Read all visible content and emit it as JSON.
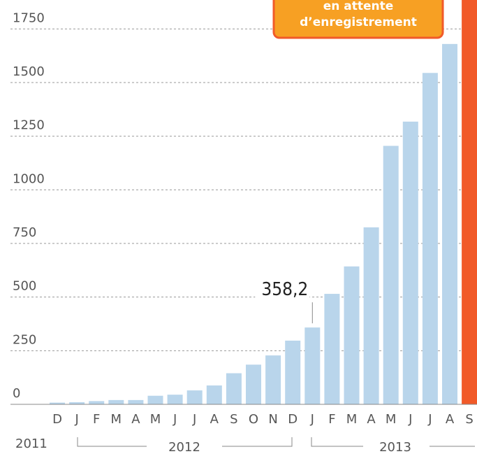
{
  "chart_data": {
    "type": "bar",
    "categories": [
      "D",
      "J",
      "F",
      "M",
      "A",
      "M",
      "J",
      "J",
      "A",
      "S",
      "O",
      "N",
      "D",
      "J",
      "F",
      "M",
      "A",
      "M",
      "J",
      "J",
      "A",
      "S"
    ],
    "values": [
      8,
      10,
      15,
      20,
      20,
      40,
      45,
      65,
      88,
      145,
      185,
      228,
      297,
      358.2,
      515,
      643,
      825,
      1205,
      1318,
      1545,
      1680,
      2000
    ],
    "value_labels": [
      null,
      null,
      null,
      null,
      null,
      null,
      null,
      null,
      null,
      null,
      null,
      null,
      null,
      "358,2",
      null,
      null,
      null,
      null,
      null,
      null,
      null,
      null
    ],
    "colors": [
      "#b9d5eb",
      "#b9d5eb",
      "#b9d5eb",
      "#b9d5eb",
      "#b9d5eb",
      "#b9d5eb",
      "#b9d5eb",
      "#b9d5eb",
      "#b9d5eb",
      "#b9d5eb",
      "#b9d5eb",
      "#b9d5eb",
      "#b9d5eb",
      "#b9d5eb",
      "#b9d5eb",
      "#b9d5eb",
      "#b9d5eb",
      "#b9d5eb",
      "#b9d5eb",
      "#b9d5eb",
      "#b9d5eb",
      "#f15a29"
    ],
    "years": [
      "2011",
      "2012",
      "2013"
    ],
    "annotation": [
      "en attente",
      "d’enregistrement"
    ],
    "ylim": [
      0,
      1885
    ],
    "yticks": [
      0,
      250,
      500,
      750,
      1000,
      1250,
      1500,
      1750
    ],
    "grid": true
  }
}
